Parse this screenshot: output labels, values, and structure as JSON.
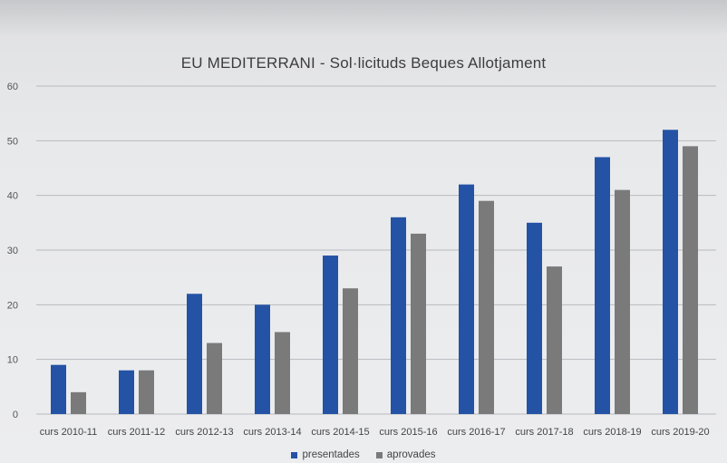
{
  "chart_data": {
    "type": "bar",
    "title": "EU MEDITERRANI - Sol·licituds Beques Allotjament",
    "xlabel": "",
    "ylabel": "",
    "categories": [
      "curs 2010-11",
      "curs 2011-12",
      "curs 2012-13",
      "curs 2013-14",
      "curs 2014-15",
      "curs 2015-16",
      "curs 2016-17",
      "curs 2017-18",
      "curs 2018-19",
      "curs 2019-20"
    ],
    "series": [
      {
        "name": "presentades",
        "color": "#2453a6",
        "values": [
          9,
          8,
          22,
          20,
          29,
          36,
          42,
          35,
          47,
          52
        ]
      },
      {
        "name": "aprovades",
        "color": "#7a7a7a",
        "values": [
          4,
          8,
          13,
          15,
          23,
          33,
          39,
          27,
          41,
          49
        ]
      }
    ],
    "ylim": [
      0,
      60
    ],
    "yticks": [
      "0",
      "10",
      "20",
      "30",
      "40",
      "50",
      "60"
    ],
    "grid": true,
    "legend_position": "bottom"
  }
}
